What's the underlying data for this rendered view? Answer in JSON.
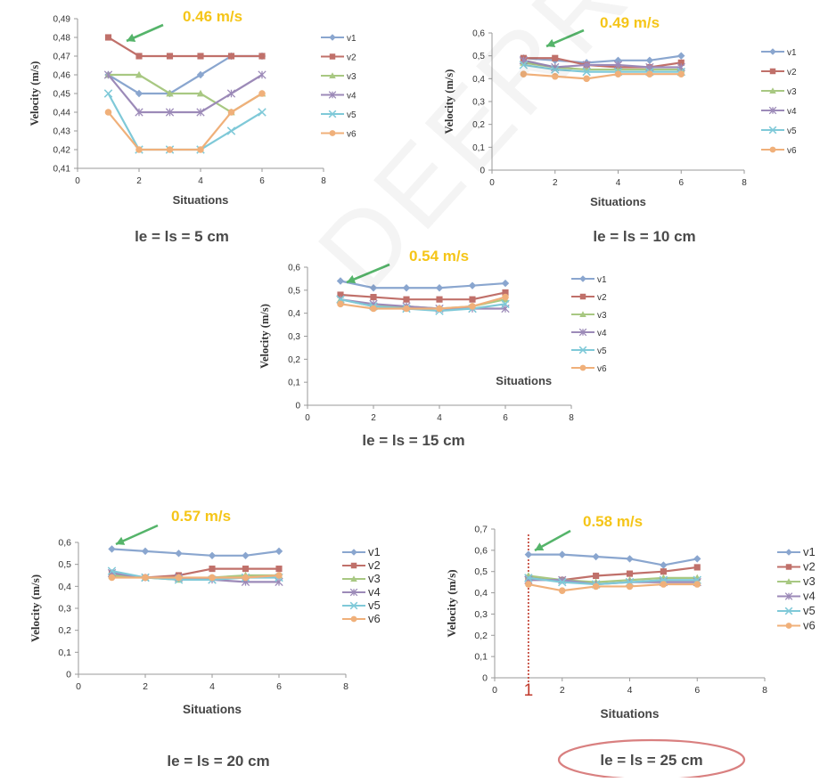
{
  "watermark": "DEERREVIEW",
  "colors": {
    "v1": "#8aa6cf",
    "v2": "#c0706a",
    "v3": "#a8c882",
    "v4": "#9c8ab8",
    "v5": "#7fc9d8",
    "v6": "#f0b07a",
    "annotation_text": "#f5c518",
    "annotation_arrow": "#55b46a",
    "marker_line": "#c0392b",
    "ellipse": "#d98080"
  },
  "chart_data": [
    {
      "type": "line",
      "caption": "le = ls = 5 cm",
      "annotation": "0.46 m/s",
      "xlabel": "Situations",
      "ylabel": "Velocity (m/s)",
      "xlim": [
        0,
        8
      ],
      "ylim": [
        0.41,
        0.49
      ],
      "xticks": [
        "0",
        "2",
        "4",
        "6",
        "8"
      ],
      "yticks": [
        "0,41",
        "0,42",
        "0,43",
        "0,44",
        "0,45",
        "0,46",
        "0,47",
        "0,48",
        "0,49"
      ],
      "x": [
        1,
        2,
        3,
        4,
        5,
        6
      ],
      "series": [
        {
          "name": "v1",
          "values": [
            0.46,
            0.45,
            0.45,
            0.46,
            0.47,
            0.47
          ]
        },
        {
          "name": "v2",
          "values": [
            0.48,
            0.47,
            0.47,
            0.47,
            0.47,
            0.47
          ]
        },
        {
          "name": "v3",
          "values": [
            0.46,
            0.46,
            0.45,
            0.45,
            0.44,
            0.45
          ]
        },
        {
          "name": "v4",
          "values": [
            0.46,
            0.44,
            0.44,
            0.44,
            0.45,
            0.46
          ]
        },
        {
          "name": "v5",
          "values": [
            0.45,
            0.42,
            0.42,
            0.42,
            0.43,
            0.44
          ]
        },
        {
          "name": "v6",
          "values": [
            0.44,
            0.42,
            0.42,
            0.42,
            0.44,
            0.45
          ]
        }
      ]
    },
    {
      "type": "line",
      "caption": "le = ls = 10 cm",
      "annotation": "0.49 m/s",
      "xlabel": "Situations",
      "ylabel": "Velocity (m/s)",
      "xlim": [
        0,
        8
      ],
      "ylim": [
        0,
        0.6
      ],
      "xticks": [
        "0",
        "2",
        "4",
        "6",
        "8"
      ],
      "yticks": [
        "0",
        "0,1",
        "0,2",
        "0,3",
        "0,4",
        "0,5",
        "0,6"
      ],
      "x": [
        1,
        2,
        3,
        4,
        5,
        6
      ],
      "series": [
        {
          "name": "v1",
          "values": [
            0.49,
            0.48,
            0.47,
            0.48,
            0.48,
            0.5
          ]
        },
        {
          "name": "v2",
          "values": [
            0.49,
            0.49,
            0.46,
            0.45,
            0.45,
            0.47
          ]
        },
        {
          "name": "v3",
          "values": [
            0.47,
            0.45,
            0.44,
            0.44,
            0.44,
            0.44
          ]
        },
        {
          "name": "v4",
          "values": [
            0.48,
            0.45,
            0.46,
            0.46,
            0.45,
            0.45
          ]
        },
        {
          "name": "v5",
          "values": [
            0.46,
            0.44,
            0.43,
            0.43,
            0.43,
            0.43
          ]
        },
        {
          "name": "v6",
          "values": [
            0.42,
            0.41,
            0.4,
            0.42,
            0.42,
            0.42
          ]
        }
      ]
    },
    {
      "type": "line",
      "caption": "le = ls = 15 cm",
      "annotation": "0.54 m/s",
      "xlabel": "Situations",
      "ylabel": "Velocity (m/s)",
      "xlim": [
        0,
        8
      ],
      "ylim": [
        0,
        0.6
      ],
      "xticks": [
        "0",
        "2",
        "4",
        "6",
        "8"
      ],
      "yticks": [
        "0",
        "0,1",
        "0,2",
        "0,3",
        "0,4",
        "0,5",
        "0,6"
      ],
      "x": [
        1,
        2,
        3,
        4,
        5,
        6
      ],
      "series": [
        {
          "name": "v1",
          "values": [
            0.54,
            0.51,
            0.51,
            0.51,
            0.52,
            0.53
          ]
        },
        {
          "name": "v2",
          "values": [
            0.48,
            0.47,
            0.46,
            0.46,
            0.46,
            0.49
          ]
        },
        {
          "name": "v3",
          "values": [
            0.46,
            0.43,
            0.43,
            0.42,
            0.43,
            0.46
          ]
        },
        {
          "name": "v4",
          "values": [
            0.46,
            0.44,
            0.43,
            0.42,
            0.42,
            0.42
          ]
        },
        {
          "name": "v5",
          "values": [
            0.46,
            0.43,
            0.42,
            0.41,
            0.42,
            0.44
          ]
        },
        {
          "name": "v6",
          "values": [
            0.44,
            0.42,
            0.42,
            0.42,
            0.43,
            0.47
          ]
        }
      ]
    },
    {
      "type": "line",
      "caption": "le = ls = 20 cm",
      "annotation": "0.57 m/s",
      "xlabel": "Situations",
      "ylabel": "Velocity (m/s)",
      "xlim": [
        0,
        8
      ],
      "ylim": [
        0,
        0.6
      ],
      "xticks": [
        "0",
        "2",
        "4",
        "6",
        "8"
      ],
      "yticks": [
        "0",
        "0,1",
        "0,2",
        "0,3",
        "0,4",
        "0,5",
        "0,6"
      ],
      "x": [
        1,
        2,
        3,
        4,
        5,
        6
      ],
      "series": [
        {
          "name": "v1",
          "values": [
            0.57,
            0.56,
            0.55,
            0.54,
            0.54,
            0.56
          ]
        },
        {
          "name": "v2",
          "values": [
            0.46,
            0.44,
            0.45,
            0.48,
            0.48,
            0.48
          ]
        },
        {
          "name": "v3",
          "values": [
            0.45,
            0.44,
            0.43,
            0.44,
            0.45,
            0.45
          ]
        },
        {
          "name": "v4",
          "values": [
            0.46,
            0.44,
            0.44,
            0.43,
            0.42,
            0.42
          ]
        },
        {
          "name": "v5",
          "values": [
            0.47,
            0.44,
            0.43,
            0.43,
            0.44,
            0.44
          ]
        },
        {
          "name": "v6",
          "values": [
            0.44,
            0.44,
            0.44,
            0.44,
            0.44,
            0.45
          ]
        }
      ]
    },
    {
      "type": "line",
      "caption": "le = ls = 25 cm",
      "annotation": "0.58 m/s",
      "marker_label": "1",
      "xlabel": "Situations",
      "ylabel": "Velocity (m/s)",
      "xlim": [
        0,
        8
      ],
      "ylim": [
        0,
        0.7
      ],
      "xticks": [
        "0",
        "2",
        "4",
        "6",
        "8"
      ],
      "yticks": [
        "0",
        "0,1",
        "0,2",
        "0,3",
        "0,4",
        "0,5",
        "0,6",
        "0,7"
      ],
      "x": [
        1,
        2,
        3,
        4,
        5,
        6
      ],
      "series": [
        {
          "name": "v1",
          "values": [
            0.58,
            0.58,
            0.57,
            0.56,
            0.53,
            0.56
          ]
        },
        {
          "name": "v2",
          "values": [
            0.47,
            0.46,
            0.48,
            0.49,
            0.5,
            0.52
          ]
        },
        {
          "name": "v3",
          "values": [
            0.48,
            0.46,
            0.45,
            0.46,
            0.47,
            0.47
          ]
        },
        {
          "name": "v4",
          "values": [
            0.46,
            0.46,
            0.44,
            0.45,
            0.45,
            0.45
          ]
        },
        {
          "name": "v5",
          "values": [
            0.47,
            0.45,
            0.44,
            0.45,
            0.46,
            0.46
          ]
        },
        {
          "name": "v6",
          "values": [
            0.44,
            0.41,
            0.43,
            0.43,
            0.44,
            0.44
          ]
        }
      ]
    }
  ]
}
